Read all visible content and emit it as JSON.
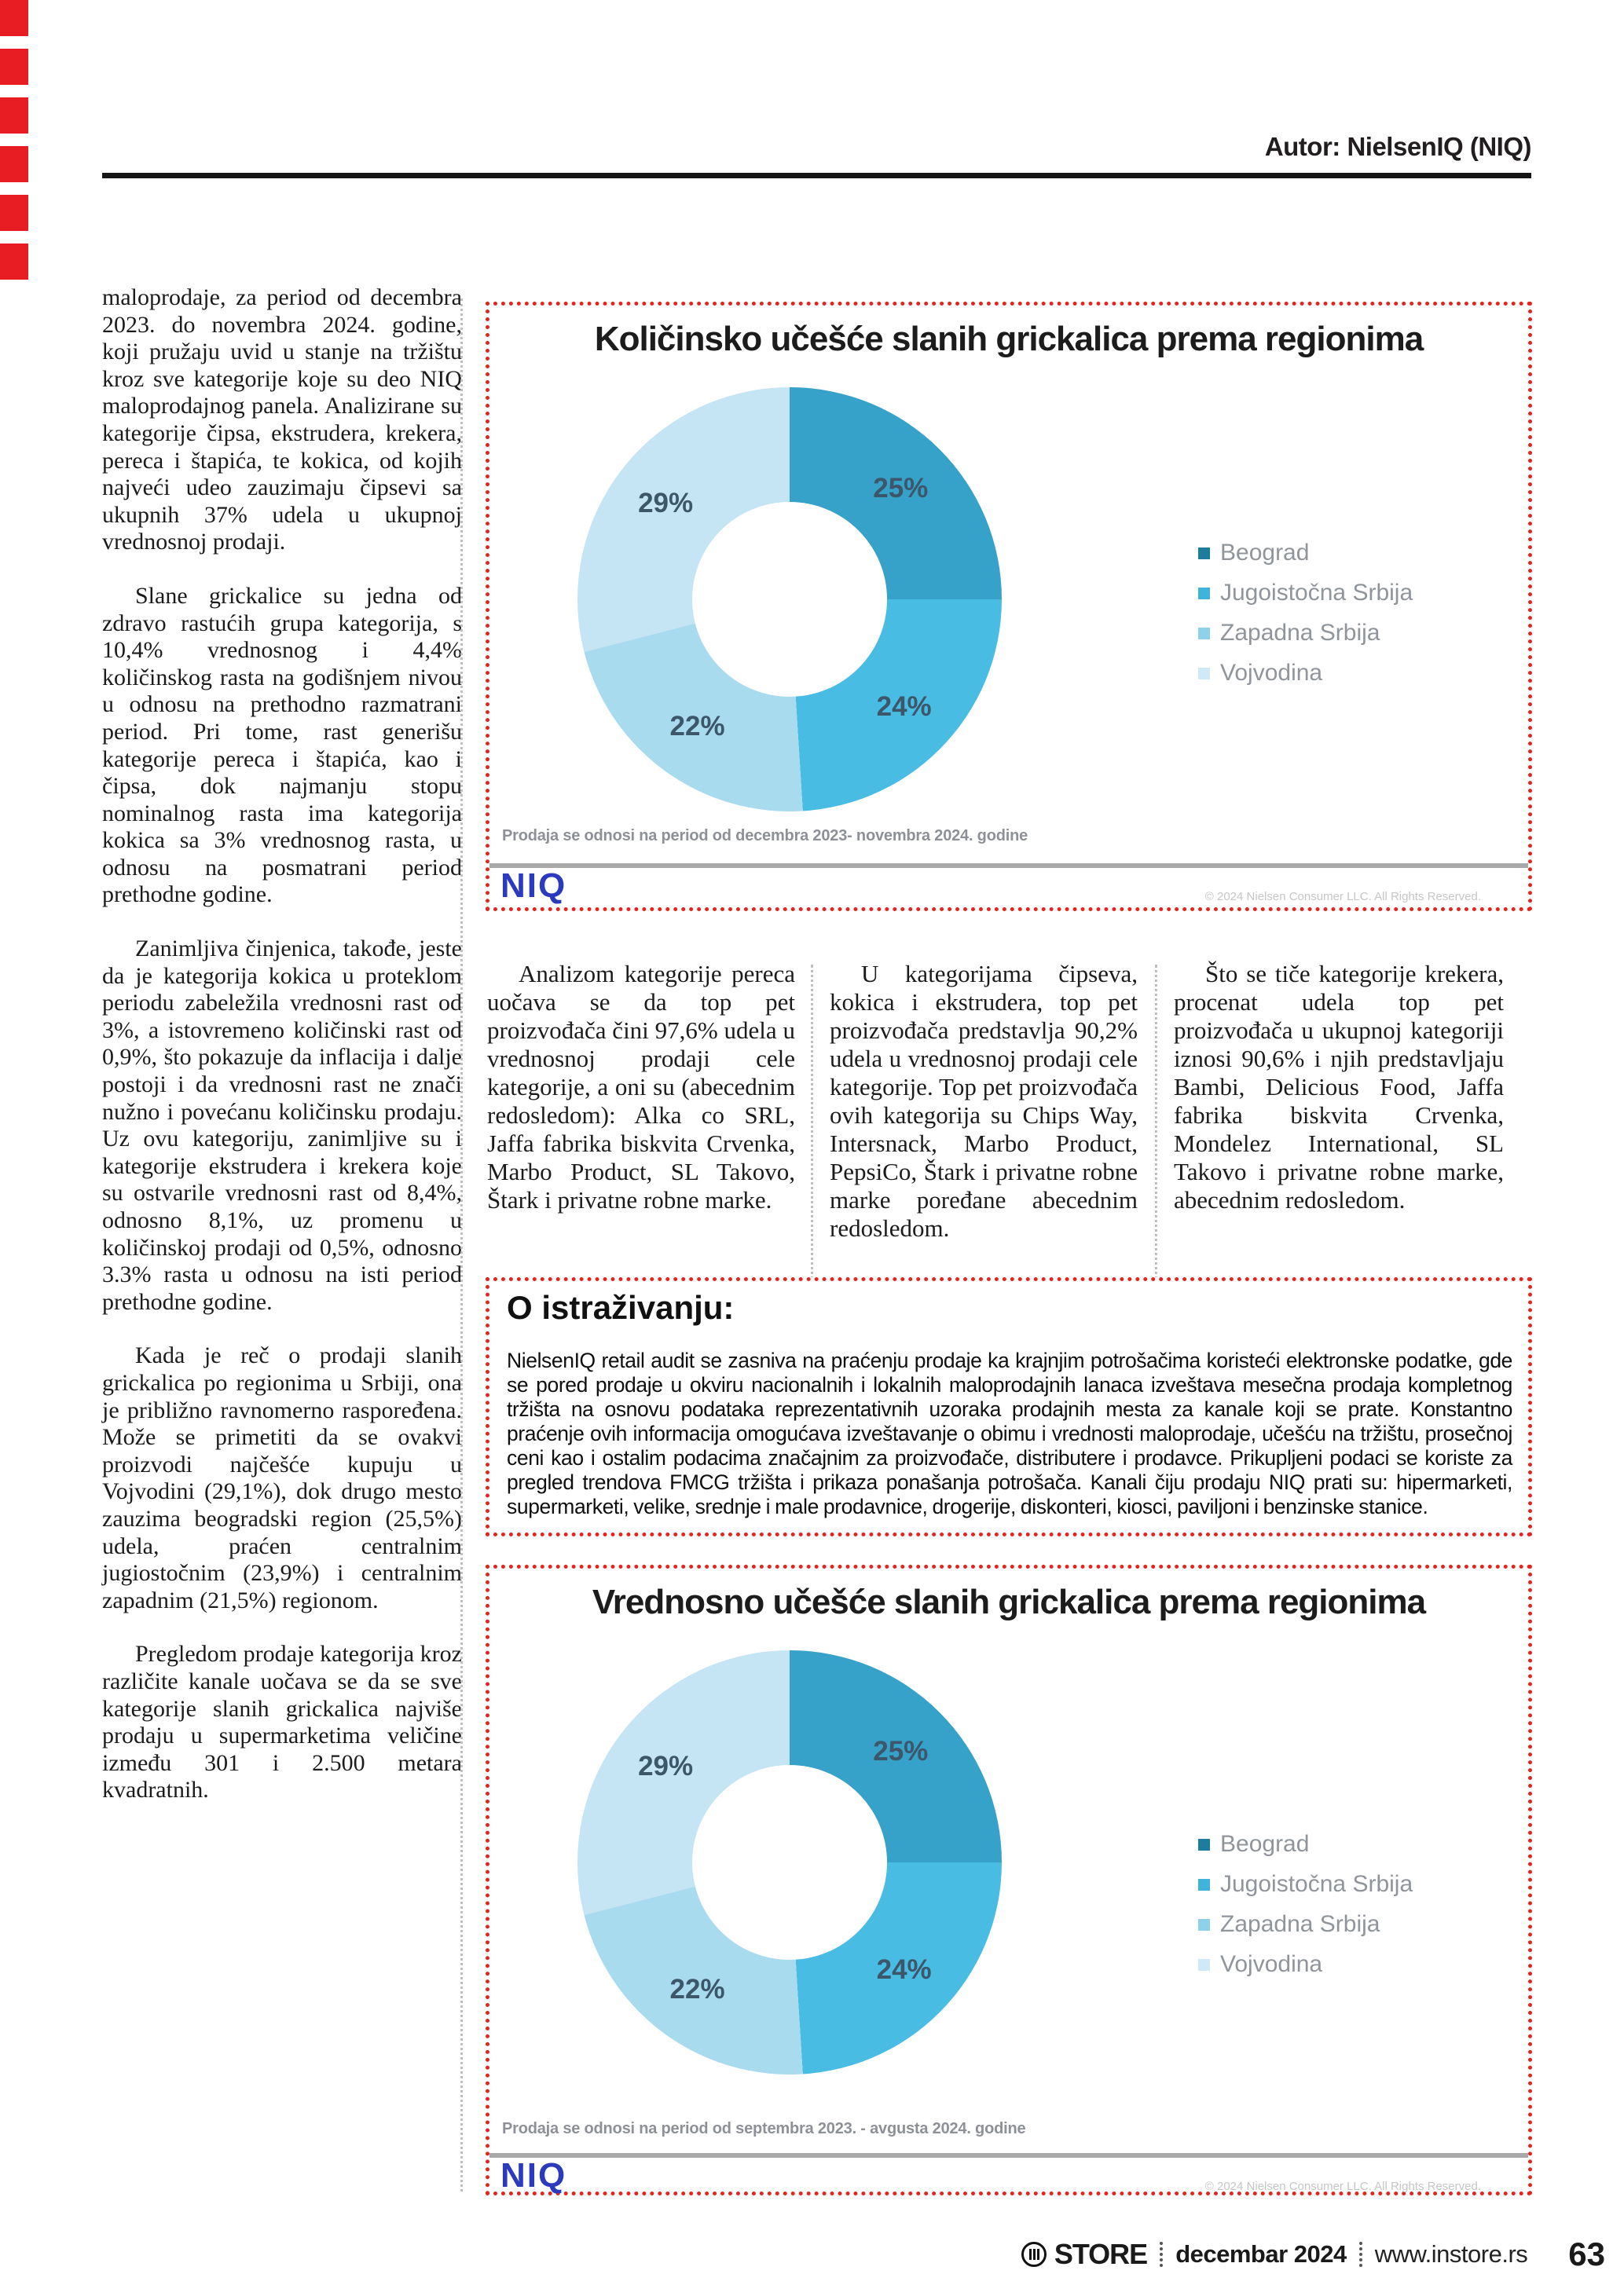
{
  "header": {
    "author": "Autor: NielsenIQ (NIQ)"
  },
  "article": {
    "paragraphs": [
      "maloprodaje, za period od decembra 2023. do novembra 2024. godine, koji pružaju uvid u stanje na tržištu kroz sve kategorije koje su deo NIQ maloprodajnog panela. Analizirane su kategorije čipsa, ekstrudera, krekera, pereca i štapića, te kokica, od kojih najveći udeo zauzimaju čipsevi sa ukupnih 37% udela u ukupnoj vrednosnoj prodaji.",
      "Slane grickalice su jedna od zdravo rastućih grupa kategorija, s 10,4% vrednosnog i 4,4% količinskog rasta na godišnjem nivou u odnosu na prethodno razmatrani period. Pri tome, rast generišu kategorije pereca i štapića, kao i čipsa, dok najmanju stopu nominalnog rasta ima kategorija kokica sa 3% vrednosnog rasta, u odnosu na posmatrani period prethodne godine.",
      "Zanimljiva činjenica, takođe, jeste da je kategorija kokica u proteklom periodu zabeležila vrednosni rast od 3%, a istovremeno količinski rast od 0,9%, što pokazuje da inflacija i dalje postoji i da vrednosni rast ne znači nužno i povećanu količinsku prodaju. Uz ovu kategoriju, zanimljive su i kategorije ekstrudera i krekera koje su ostvarile vrednosni rast od 8,4%, odnosno 8,1%, uz promenu u količinskoj prodaji od 0,5%, odnosno 3.3% rasta u odnosu na isti period prethodne godine.",
      "Kada je reč o prodaji slanih grickalica po regionima u Srbiji, ona je približno ravnomerno raspoređena. Može se primetiti da se ovakvi proizvodi najčešće kupuju u Vojvodini (29,1%), dok drugo mesto zauzima beogradski region (25,5%) udela, praćen centralnim jugiostočnim (23,9%) i centralnim zapadnim (21,5%) regionom.",
      "Pregledom prodaje kategorija kroz različite kanale uočava se da se sve kategorije slanih grickalica najviše prodaju u supermarketima veličine između 301 i 2.500 metara kvadratnih."
    ]
  },
  "columns": [
    {
      "text": "Analizom kategorije pereca uočava se da top pet proizvođača čini 97,6% udela u vrednosnoj prodaji cele kategorije, a oni su (abecednim redosledom): Alka co SRL, Jaffa fabrika biskvita Crvenka, Marbo Product, SL Takovo, Štark i privatne robne marke."
    },
    {
      "text": "U kategorijama čipseva, kokica i ekstrudera, top pet proizvođača predstavlja 90,2% udela u vrednosnoj prodaji cele kategorije. Top pet proizvođača ovih kategorija su Chips Way, Intersnack, Marbo Product, PepsiCo, Štark i privatne robne marke poređane abecednim redosledom."
    },
    {
      "text": "Što se tiče kategorije krekera, procenat udela top pet proizvođača u ukupnoj kategoriji iznosi 90,6% i njih predstavljaju Bambi, Delicious Food, Jaffa fabrika biskvita Crvenka, Mondelez International, SL Takovo i privatne robne marke, abecednim redosledom."
    }
  ],
  "about": {
    "heading": "O istraživanju:",
    "body": "NielsenIQ retail audit se zasniva na praćenju prodaje ka krajnjim potrošačima koristeći elektronske podatke, gde se pored prodaje u okviru nacionalnih i lokalnih maloprodajnih lanaca izveštava mesečna prodaja kompletnog tržišta na osnovu podataka reprezentativnih uzoraka prodajnih mesta za kanale koji se prate. Konstantno praćenje ovih informacija omogućava izveštavanje o obimu i vrednosti maloprodaje, učešću na tržištu, prosečnoj ceni kao i ostalim podacima značajnim za proizvođače, distributere i prodavce. Prikupljeni podaci se koriste za pregled trendova FMCG tržišta i prikaza ponašanja potrošača. Kanali čiju prodaju NIQ prati su: hipermarketi, supermarketi, velike, srednje i male prodavnice, drogerije, diskonteri, kiosci, paviljoni i benzinske stanice."
  },
  "charts": [
    {
      "title": "Količinsko učešće slanih grickalica prema regionima",
      "footnote": "Prodaja se odnosi na period od decembra 2023- novembra 2024. godine",
      "logo": "NIQ",
      "copyright": "© 2024 Nielsen Consumer LLC. All Rights Reserved."
    },
    {
      "title": "Vrednosno učešće slanih grickalica prema regionima",
      "footnote": "Prodaja se odnosi na period od septembra 2023. - avgusta 2024. godine",
      "logo": "NIQ",
      "copyright": "© 2024 Nielsen Consumer LLC. All Rights Reserved."
    }
  ],
  "chart_data": [
    {
      "type": "pie",
      "subtype": "donut",
      "title": "Količinsko učešće slanih grickalica prema regionima",
      "categories": [
        "Beograd",
        "Jugoistočna Srbija",
        "Zapadna Srbija",
        "Vojvodina"
      ],
      "values": [
        25,
        24,
        22,
        29
      ],
      "unit": "%",
      "colors": [
        "#36a1c9",
        "#49bce3",
        "#a9dbef",
        "#c6e5f4"
      ],
      "legend_colors": [
        "#1d7d9c",
        "#3fb3da",
        "#8fd0ea",
        "#cfe9f6"
      ],
      "legend_position": "right",
      "note": "Prodaja se odnosi na period od decembra 2023- novembra 2024. godine"
    },
    {
      "type": "pie",
      "subtype": "donut",
      "title": "Vrednosno učešće slanih grickalica prema regionima",
      "categories": [
        "Beograd",
        "Jugoistočna Srbija",
        "Zapadna Srbija",
        "Vojvodina"
      ],
      "values": [
        25,
        24,
        22,
        29
      ],
      "unit": "%",
      "colors": [
        "#36a1c9",
        "#49bce3",
        "#a9dbef",
        "#c6e5f4"
      ],
      "legend_colors": [
        "#1d7d9c",
        "#3fb3da",
        "#8fd0ea",
        "#cfe9f6"
      ],
      "legend_position": "right",
      "note": "Prodaja se odnosi na period od septembra 2023. - avgusta 2024. godine"
    }
  ],
  "footer": {
    "brand": "STORE",
    "date": "decembar 2024",
    "site": "www.instore.rs",
    "page": "63"
  }
}
